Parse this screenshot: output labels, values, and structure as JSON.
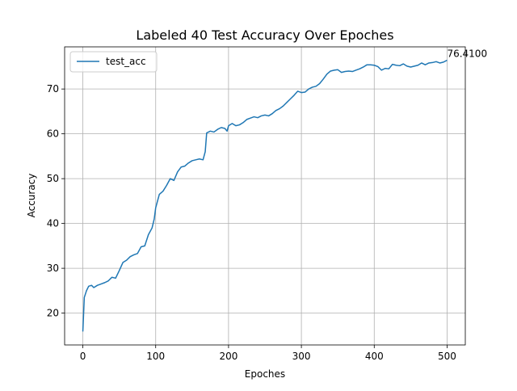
{
  "chart_data": {
    "type": "line",
    "title": "Labeled 40 Test Accuracy Over Epoches",
    "xlabel": "Epoches",
    "ylabel": "Accuracy",
    "x": [
      0,
      2,
      5,
      8,
      12,
      15,
      20,
      25,
      30,
      35,
      40,
      45,
      50,
      55,
      60,
      65,
      70,
      75,
      80,
      85,
      90,
      95,
      98,
      100,
      105,
      110,
      115,
      120,
      125,
      130,
      135,
      140,
      145,
      150,
      155,
      160,
      165,
      168,
      170,
      175,
      180,
      185,
      190,
      195,
      198,
      200,
      205,
      210,
      215,
      220,
      225,
      230,
      235,
      240,
      245,
      250,
      255,
      260,
      265,
      270,
      275,
      280,
      285,
      290,
      295,
      300,
      305,
      310,
      315,
      320,
      325,
      330,
      335,
      340,
      345,
      350,
      355,
      360,
      365,
      370,
      375,
      380,
      385,
      390,
      395,
      400,
      405,
      410,
      415,
      420,
      425,
      430,
      435,
      440,
      445,
      450,
      455,
      460,
      465,
      470,
      475,
      480,
      485,
      490,
      495,
      500
    ],
    "series": [
      {
        "name": "test_acc",
        "color": "#1f77b4",
        "values": [
          15.9,
          23.5,
          25,
          26,
          26.2,
          25.7,
          26.2,
          26.5,
          26.8,
          27.2,
          28,
          27.8,
          29.5,
          31.3,
          31.8,
          32.6,
          33,
          33.3,
          34.8,
          35,
          37.5,
          39,
          41,
          43.5,
          46.5,
          47.2,
          48.5,
          50,
          49.6,
          51.5,
          52.6,
          52.8,
          53.5,
          54,
          54.2,
          54.4,
          54.2,
          56,
          60.2,
          60.6,
          60.4,
          61,
          61.4,
          61.2,
          60.6,
          61.8,
          62.3,
          61.8,
          62,
          62.5,
          63.2,
          63.5,
          63.8,
          63.6,
          64,
          64.2,
          64,
          64.5,
          65.2,
          65.6,
          66.2,
          67,
          67.8,
          68.6,
          69.5,
          69.2,
          69.3,
          70,
          70.4,
          70.6,
          71.2,
          72.2,
          73.3,
          74,
          74.2,
          74.3,
          73.7,
          73.9,
          74,
          73.9,
          74.2,
          74.5,
          74.9,
          75.4,
          75.4,
          75.3,
          75,
          74.2,
          74.6,
          74.5,
          75.5,
          75.3,
          75.2,
          75.6,
          75.1,
          74.9,
          75.1,
          75.3,
          75.8,
          75.4,
          75.8,
          75.9,
          76.1,
          75.8,
          76,
          76.41
        ]
      }
    ],
    "annotation": "76.4100",
    "xlim": [
      -25,
      525
    ],
    "ylim": [
      12.9,
      79.4
    ],
    "xticks": [
      0,
      100,
      200,
      300,
      400,
      500
    ],
    "yticks": [
      20,
      30,
      40,
      50,
      60,
      70
    ],
    "grid": true,
    "legend": "upper left"
  }
}
